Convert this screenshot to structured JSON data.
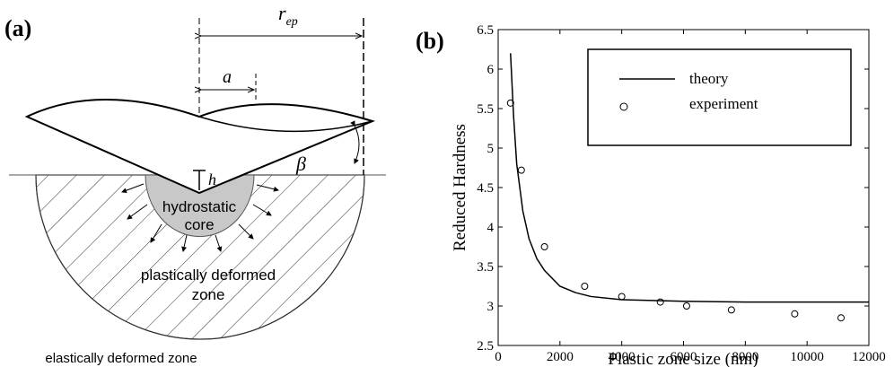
{
  "panel_a": {
    "label": "(a)",
    "r_ep": {
      "main": "r",
      "sub": "ep"
    },
    "a": "a",
    "h": "h",
    "beta": "β",
    "core": [
      "hydrostatic",
      "core"
    ],
    "plastic": [
      "plastically deformed",
      "zone"
    ],
    "elastic": "elastically deformed zone"
  },
  "chart_data": {
    "type": "line",
    "panel_label": "(b)",
    "x_label": "Plastic zone size (nm)",
    "y_label": "Reduced Hardness",
    "xlim": [
      0,
      12000
    ],
    "xticks": [
      0,
      2000,
      4000,
      6000,
      8000,
      10000,
      12000
    ],
    "ylim": [
      2.5,
      6.5
    ],
    "yticks": [
      2.5,
      3,
      3.5,
      4,
      4.5,
      5,
      5.5,
      6,
      6.5
    ],
    "legend": "upper right",
    "series": [
      {
        "name": "theory",
        "style": "line",
        "color": "#000000",
        "x": [
          400,
          500,
          600,
          800,
          1000,
          1250,
          1500,
          2000,
          2500,
          3000,
          4000,
          6000,
          8000,
          12000
        ],
        "values": [
          6.2,
          5.4,
          4.8,
          4.2,
          3.85,
          3.6,
          3.45,
          3.25,
          3.17,
          3.12,
          3.08,
          3.06,
          3.05,
          3.05
        ]
      },
      {
        "name": "experiment",
        "style": "marker",
        "color": "#000000",
        "x": [
          400,
          750,
          1500,
          2800,
          4000,
          5250,
          6100,
          7550,
          9600,
          11100
        ],
        "values": [
          5.57,
          4.72,
          3.75,
          3.25,
          3.12,
          3.05,
          3.0,
          2.95,
          2.9,
          2.85
        ]
      }
    ]
  }
}
